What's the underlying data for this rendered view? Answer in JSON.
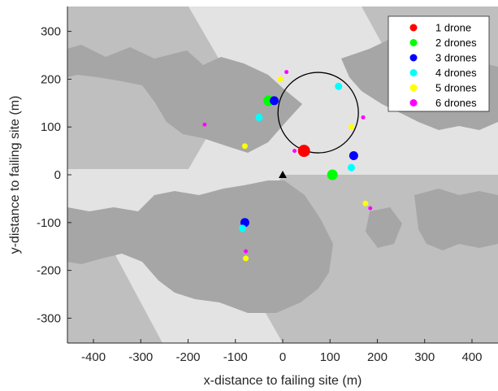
{
  "chart_data": {
    "type": "scatter",
    "xlabel": "x-distance to failing site (m)",
    "ylabel": "y-distance to failing site (m)",
    "xlim": [
      -455,
      455
    ],
    "ylim": [
      -352,
      352
    ],
    "xticks": [
      -400,
      -300,
      -200,
      -100,
      0,
      100,
      200,
      300,
      400
    ],
    "yticks": [
      -300,
      -200,
      -100,
      0,
      100,
      200,
      300
    ],
    "xtick_labels": [
      "-400",
      "-300",
      "-200",
      "-100",
      "0",
      "100",
      "200",
      "300",
      "400"
    ],
    "ytick_labels": [
      "-300",
      "-200",
      "-100",
      "0",
      "100",
      "200",
      "300"
    ],
    "grid": false,
    "legend_position": "top-right",
    "failing_site": {
      "x": 0,
      "y": 0,
      "marker": "triangle",
      "color": "#000000"
    },
    "circle": {
      "center_x": 75,
      "center_y": 130,
      "radius": 85,
      "color": "#000000"
    },
    "series": [
      {
        "name": "1 drone",
        "color": "#ff0000",
        "points": [
          {
            "x": 45,
            "y": 50,
            "size": 15
          }
        ]
      },
      {
        "name": "2 drones",
        "color": "#00ff00",
        "points": [
          {
            "x": -30,
            "y": 155,
            "size": 13
          },
          {
            "x": 105,
            "y": 0,
            "size": 13
          }
        ]
      },
      {
        "name": "3 drones",
        "color": "#0000ff",
        "points": [
          {
            "x": -18,
            "y": 155,
            "size": 11
          },
          {
            "x": 150,
            "y": 40,
            "size": 11
          },
          {
            "x": -80,
            "y": -100,
            "size": 11
          }
        ]
      },
      {
        "name": "4 drones",
        "color": "#00ffff",
        "points": [
          {
            "x": 118,
            "y": 185,
            "size": 9
          },
          {
            "x": -50,
            "y": 120,
            "size": 9
          },
          {
            "x": 145,
            "y": 15,
            "size": 9
          },
          {
            "x": -85,
            "y": -112,
            "size": 9
          }
        ]
      },
      {
        "name": "5 drones",
        "color": "#ffff00",
        "points": [
          {
            "x": -5,
            "y": 200,
            "size": 7
          },
          {
            "x": 145,
            "y": 100,
            "size": 7
          },
          {
            "x": -80,
            "y": 60,
            "size": 7
          },
          {
            "x": 175,
            "y": -60,
            "size": 7
          },
          {
            "x": -78,
            "y": -175,
            "size": 7
          }
        ]
      },
      {
        "name": "6 drones",
        "color": "#ff00ff",
        "points": [
          {
            "x": 8,
            "y": 215,
            "size": 5
          },
          {
            "x": 170,
            "y": 120,
            "size": 5
          },
          {
            "x": -165,
            "y": 105,
            "size": 5
          },
          {
            "x": 25,
            "y": 50,
            "size": 5
          },
          {
            "x": 185,
            "y": -70,
            "size": 5
          },
          {
            "x": -78,
            "y": -160,
            "size": 5
          }
        ]
      }
    ]
  },
  "colors": {
    "background_light": "#e3e3e3",
    "background_mid": "#bfbfbf",
    "background_dark": "#a6a6a6",
    "axis": "#262626"
  }
}
